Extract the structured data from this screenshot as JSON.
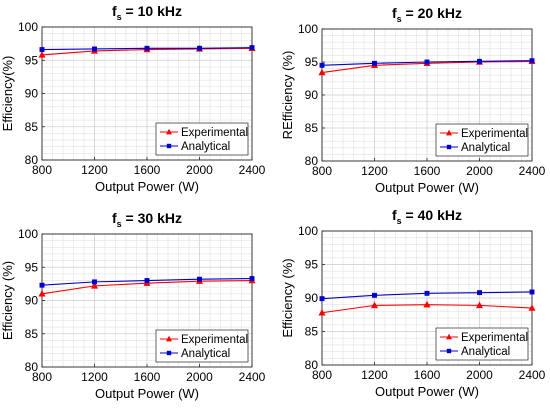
{
  "chart_data": [
    {
      "type": "line",
      "title": {
        "main": "f",
        "subscript": "s",
        "rest": " = 10 kHz"
      },
      "xlabel": "Output Power (W)",
      "ylabel": "Efficiency(%)",
      "x": [
        800,
        1200,
        1600,
        2000,
        2400
      ],
      "xlim": [
        800,
        2400
      ],
      "ylim": [
        80,
        100
      ],
      "yticks": [
        80,
        85,
        90,
        95,
        100
      ],
      "grid": "minor",
      "legend": "bottom-right",
      "series": [
        {
          "name": "Experimental",
          "color": "#ff0000",
          "marker": "triangle",
          "values": [
            95.8,
            96.4,
            96.6,
            96.7,
            96.8
          ]
        },
        {
          "name": "Analytical",
          "color": "#0000cc",
          "marker": "square",
          "values": [
            96.6,
            96.7,
            96.8,
            96.8,
            96.9
          ]
        }
      ]
    },
    {
      "type": "line",
      "title": {
        "main": "f",
        "subscript": "s",
        "rest": " = 20 kHz"
      },
      "xlabel": "Output Power (W)",
      "ylabel": "REfficiency (%)",
      "x": [
        800,
        1200,
        1600,
        2000,
        2400
      ],
      "xlim": [
        800,
        2400
      ],
      "ylim": [
        80,
        100
      ],
      "yticks": [
        80,
        85,
        90,
        95,
        100
      ],
      "grid": "minor",
      "legend": "bottom-right",
      "series": [
        {
          "name": "Experimental",
          "color": "#ff0000",
          "marker": "triangle",
          "values": [
            93.4,
            94.5,
            94.8,
            95.0,
            95.1
          ]
        },
        {
          "name": "Analytical",
          "color": "#0000cc",
          "marker": "square",
          "values": [
            94.5,
            94.8,
            95.0,
            95.1,
            95.2
          ]
        }
      ]
    },
    {
      "type": "line",
      "title": {
        "main": "f",
        "subscript": "s",
        "rest": " = 30 kHz"
      },
      "xlabel": "Output Power (W)",
      "ylabel": "Efficiency (%)",
      "x": [
        800,
        1200,
        1600,
        2000,
        2400
      ],
      "xlim": [
        800,
        2400
      ],
      "ylim": [
        80,
        100
      ],
      "yticks": [
        80,
        85,
        90,
        95,
        100
      ],
      "grid": "minor",
      "legend": "bottom-right",
      "series": [
        {
          "name": "Experimental",
          "color": "#ff0000",
          "marker": "triangle",
          "values": [
            91.0,
            92.2,
            92.6,
            92.9,
            93.0
          ]
        },
        {
          "name": "Analytical",
          "color": "#0000cc",
          "marker": "square",
          "values": [
            92.3,
            92.8,
            93.0,
            93.2,
            93.3
          ]
        }
      ]
    },
    {
      "type": "line",
      "title": {
        "main": "f",
        "subscript": "s",
        "rest": " = 40 kHz"
      },
      "xlabel": "Output Power (W)",
      "ylabel": "Efficiency (%)",
      "x": [
        800,
        1200,
        1600,
        2000,
        2400
      ],
      "xlim": [
        800,
        2400
      ],
      "ylim": [
        80,
        100
      ],
      "yticks": [
        80,
        85,
        90,
        95,
        100
      ],
      "grid": "minor",
      "legend": "bottom-right",
      "series": [
        {
          "name": "Experimental",
          "color": "#ff0000",
          "marker": "triangle",
          "values": [
            87.8,
            88.9,
            89.0,
            88.9,
            88.5
          ]
        },
        {
          "name": "Analytical",
          "color": "#0000cc",
          "marker": "square",
          "values": [
            89.9,
            90.4,
            90.7,
            90.8,
            90.9
          ]
        }
      ]
    }
  ]
}
